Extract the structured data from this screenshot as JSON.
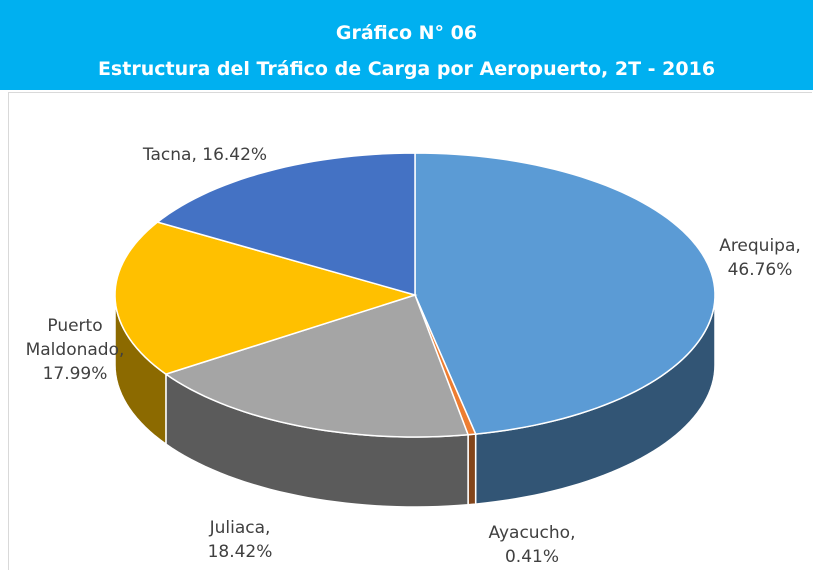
{
  "chart_data": {
    "type": "pie",
    "title": "Gráfico N° 06",
    "subtitle": "Estructura del Tráfico de Carga por Aeropuerto, 2T - 2016",
    "values": [
      46.76,
      0.41,
      18.42,
      17.99,
      16.42
    ],
    "value_labels": [
      "Arequipa, 46.76%",
      "Ayacucho, 0.41%",
      "Juliaca, 18.42%",
      "Puerto Maldonado, 17.99%",
      "Tacna, 16.42%"
    ],
    "colors": [
      "#5b9bd5",
      "#ed7d31",
      "#a5a5a5",
      "#ffc000",
      "#4472c4"
    ]
  }
}
